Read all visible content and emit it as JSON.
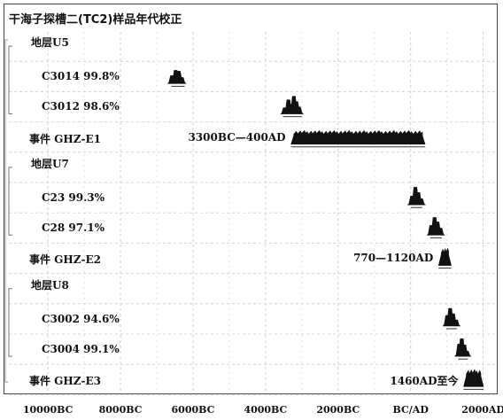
{
  "title": "干海子探槽二(TC2)样品年代校正",
  "chart_data": {
    "type": "other",
    "x_axis": {
      "ticks": [
        "10000BC",
        "8000BC",
        "6000BC",
        "4000BC",
        "2000BC",
        "BC/AD",
        "2000AD"
      ],
      "tick_values": [
        -10000,
        -8000,
        -6000,
        -4000,
        -2000,
        0,
        2000
      ],
      "range": [
        -11200,
        2400
      ]
    },
    "grid": true,
    "rows": [
      {
        "kind": "group",
        "label": "地层U5"
      },
      {
        "kind": "sample",
        "label": "C3014 99.8%",
        "peaks": [
          [
            -6580,
            0.45
          ],
          [
            -6480,
            0.75
          ],
          [
            -6390,
            0.7
          ],
          [
            -6310,
            0.35
          ]
        ],
        "range": [
          -6600,
          -6230
        ]
      },
      {
        "kind": "sample",
        "label": "C3012 98.6%",
        "peaks": [
          [
            -3470,
            0.35
          ],
          [
            -3370,
            0.8
          ],
          [
            -3300,
            0.55
          ],
          [
            -3220,
            1.0
          ],
          [
            -3150,
            0.7
          ],
          [
            -3080,
            0.4
          ]
        ],
        "range": [
          -3520,
          -3000
        ]
      },
      {
        "kind": "event",
        "label": "事件 GHZ-E1",
        "annotation": "3300BC—400AD",
        "range": [
          -3300,
          400
        ]
      },
      {
        "kind": "group",
        "label": "地层U7"
      },
      {
        "kind": "sample",
        "label": "C23 99.3%",
        "peaks": [
          [
            40,
            0.5
          ],
          [
            130,
            1.0
          ],
          [
            210,
            0.7
          ],
          [
            290,
            0.35
          ]
        ],
        "range": [
          10,
          320
        ]
      },
      {
        "kind": "sample",
        "label": "C28 97.1%",
        "peaks": [
          [
            570,
            0.55
          ],
          [
            660,
            1.0
          ],
          [
            740,
            0.75
          ],
          [
            820,
            0.4
          ]
        ],
        "range": [
          540,
          860
        ]
      },
      {
        "kind": "event",
        "label": "事件 GHZ-E2",
        "annotation": "770—1120AD",
        "range": [
          770,
          1120
        ]
      },
      {
        "kind": "group",
        "label": "地层U8"
      },
      {
        "kind": "sample",
        "label": "C3002 94.6%",
        "peaks": [
          [
            1010,
            0.6
          ],
          [
            1090,
            1.0
          ],
          [
            1170,
            0.7
          ],
          [
            1250,
            0.35
          ]
        ],
        "range": [
          980,
          1280
        ]
      },
      {
        "kind": "sample",
        "label": "C3004 99.1%",
        "peaks": [
          [
            1340,
            0.7
          ],
          [
            1410,
            1.0
          ],
          [
            1480,
            0.65
          ],
          [
            1550,
            0.3
          ]
        ],
        "range": [
          1310,
          1580
        ]
      },
      {
        "kind": "event",
        "label": "事件 GHZ-E3",
        "annotation": "1460AD至今",
        "range": [
          1460,
          2010
        ]
      }
    ]
  }
}
